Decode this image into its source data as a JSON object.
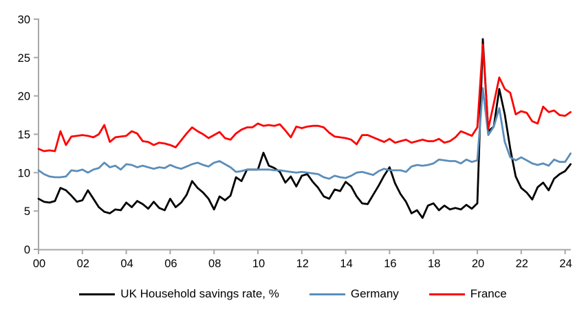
{
  "chart_data": {
    "type": "line",
    "title": "",
    "xlabel": "",
    "ylabel": "",
    "x_start_year": 2000,
    "x_step_years": 0.25,
    "x_tick_years": [
      2000,
      2002,
      2004,
      2006,
      2008,
      2010,
      2012,
      2014,
      2016,
      2018,
      2020,
      2022,
      2024
    ],
    "x_tick_labels": [
      "00",
      "02",
      "04",
      "06",
      "08",
      "10",
      "12",
      "14",
      "16",
      "18",
      "20",
      "22",
      "24"
    ],
    "ylim": [
      0,
      30
    ],
    "y_ticks": [
      0,
      5,
      10,
      15,
      20,
      25,
      30
    ],
    "grid": false,
    "legend_position": "bottom",
    "axis_color": "#A6A6A6",
    "tick_label_color": "#000000",
    "series": [
      {
        "name": "UK Household savings rate, %",
        "color": "#000000",
        "values": [
          6.6,
          6.2,
          6.1,
          6.3,
          8.0,
          7.7,
          7.0,
          6.2,
          6.4,
          7.7,
          6.6,
          5.5,
          4.9,
          4.7,
          5.2,
          5.1,
          6.1,
          5.5,
          6.3,
          5.9,
          5.3,
          6.2,
          5.4,
          5.1,
          6.6,
          5.5,
          6.1,
          7.1,
          8.9,
          8.0,
          7.4,
          6.6,
          5.2,
          6.9,
          6.4,
          7.0,
          9.4,
          8.9,
          10.4,
          10.4,
          10.4,
          12.6,
          10.9,
          10.6,
          10.1,
          8.7,
          9.5,
          8.2,
          9.6,
          9.8,
          8.8,
          8.0,
          6.9,
          6.6,
          7.8,
          7.6,
          8.8,
          8.2,
          6.9,
          6.0,
          5.9,
          7.1,
          8.3,
          9.6,
          10.7,
          8.6,
          7.2,
          6.2,
          4.7,
          5.1,
          4.1,
          5.7,
          6.0,
          5.1,
          5.7,
          5.2,
          5.4,
          5.2,
          5.8,
          5.3,
          6.0,
          27.4,
          15.4,
          16.0,
          20.9,
          17.6,
          13.1,
          9.5,
          8.0,
          7.4,
          6.5,
          8.1,
          8.7,
          7.7,
          9.2,
          9.8,
          10.2,
          11.1
        ]
      },
      {
        "name": "Germany",
        "color": "#5B8DB9",
        "values": [
          10.3,
          9.8,
          9.5,
          9.4,
          9.4,
          9.5,
          10.3,
          10.2,
          10.4,
          10.0,
          10.4,
          10.6,
          11.3,
          10.7,
          10.9,
          10.4,
          11.1,
          11.0,
          10.7,
          10.9,
          10.7,
          10.5,
          10.7,
          10.6,
          11.0,
          10.7,
          10.5,
          10.8,
          11.1,
          11.3,
          11.0,
          10.8,
          11.3,
          11.5,
          11.1,
          10.7,
          10.1,
          10.2,
          10.4,
          10.4,
          10.4,
          10.4,
          10.4,
          10.3,
          10.3,
          10.2,
          10.1,
          10.0,
          10.1,
          10.0,
          9.9,
          9.8,
          9.4,
          9.2,
          9.6,
          9.4,
          9.3,
          9.6,
          10.0,
          10.1,
          9.9,
          9.7,
          10.2,
          10.5,
          10.3,
          10.3,
          10.3,
          10.1,
          10.8,
          11.0,
          10.9,
          11.0,
          11.2,
          11.7,
          11.6,
          11.5,
          11.5,
          11.2,
          11.7,
          11.4,
          11.6,
          21.0,
          14.9,
          16.0,
          18.4,
          14.0,
          12.0,
          11.6,
          12.0,
          11.6,
          11.2,
          11.0,
          11.2,
          10.9,
          11.7,
          11.4,
          11.4,
          12.5
        ]
      },
      {
        "name": "France",
        "color": "#FF0000",
        "values": [
          13.1,
          12.8,
          12.9,
          12.8,
          15.4,
          13.6,
          14.7,
          14.8,
          14.9,
          14.8,
          14.6,
          15.0,
          16.2,
          14.0,
          14.6,
          14.7,
          14.8,
          15.4,
          15.1,
          14.1,
          14.0,
          13.6,
          13.9,
          13.8,
          13.6,
          13.3,
          14.2,
          15.1,
          15.9,
          15.4,
          15.0,
          14.5,
          14.9,
          15.3,
          14.5,
          14.3,
          15.1,
          15.6,
          15.9,
          15.9,
          16.4,
          16.1,
          16.2,
          16.1,
          16.3,
          15.5,
          14.6,
          16.0,
          15.8,
          16.0,
          16.1,
          16.1,
          15.9,
          15.2,
          14.7,
          14.6,
          14.5,
          14.3,
          13.7,
          14.9,
          14.9,
          14.6,
          14.3,
          14.0,
          14.4,
          13.9,
          14.1,
          14.3,
          13.9,
          14.1,
          14.3,
          14.1,
          14.1,
          14.4,
          13.9,
          14.1,
          14.6,
          15.4,
          15.1,
          14.8,
          15.9,
          26.7,
          15.7,
          19.0,
          22.4,
          20.9,
          20.4,
          17.6,
          18.0,
          17.8,
          16.7,
          16.4,
          18.6,
          17.9,
          18.1,
          17.5,
          17.4,
          17.9
        ]
      }
    ]
  },
  "legend": {
    "uk_label": "UK Household savings rate, %",
    "germany_label": "Germany",
    "france_label": "France"
  }
}
